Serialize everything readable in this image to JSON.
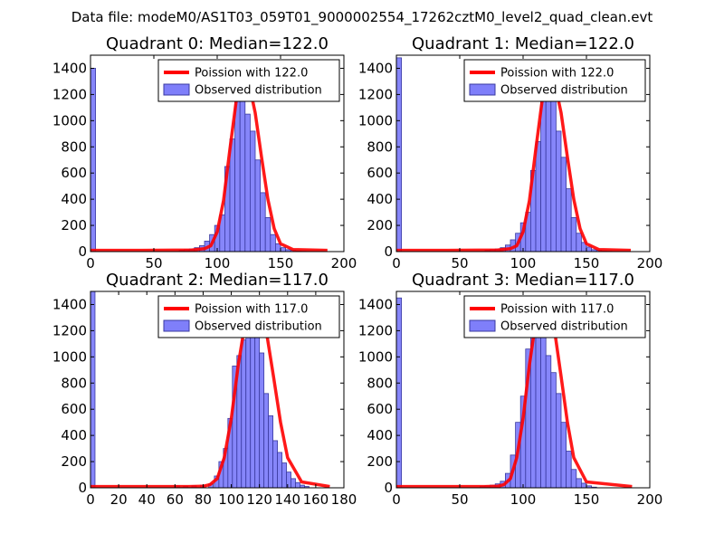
{
  "figure_title": "Data file: modeM0/AS1T03_059T01_9000002554_17262cztM0_level2_quad_clean.evt",
  "colors": {
    "hist_fill": "#7f7ffa",
    "hist_edge": "#3a3aa0",
    "poisson_line": "#ff0000",
    "background": "#ffffff"
  },
  "chart_data": [
    {
      "type": "bar",
      "title": "Quadrant 0: Median=122.0",
      "xlim": [
        0,
        200
      ],
      "ylim": [
        0,
        1500
      ],
      "xticks": [
        0,
        50,
        100,
        150,
        200
      ],
      "yticks": [
        0,
        200,
        400,
        600,
        800,
        1000,
        1200,
        1400
      ],
      "legend_position": "upper right",
      "poisson_mean": 122.0,
      "poisson_line": {
        "name": "Poission with 122.0",
        "x": [
          0,
          40,
          80,
          90,
          95,
          100,
          105,
          110,
          115,
          120,
          122,
          125,
          130,
          135,
          140,
          145,
          150,
          160,
          187
        ],
        "y": [
          10,
          10,
          12,
          22,
          45,
          150,
          390,
          780,
          1150,
          1330,
          1350,
          1290,
          1060,
          720,
          400,
          175,
          60,
          15,
          10
        ]
      },
      "histogram": {
        "name": "Observed distribution",
        "bin_width": 4,
        "bins": [
          0,
          70,
          74,
          78,
          82,
          86,
          90,
          94,
          98,
          102,
          106,
          110,
          114,
          118,
          122,
          126,
          130,
          134,
          138,
          142,
          146,
          150,
          154,
          158,
          162,
          166
        ],
        "counts": [
          1400,
          10,
          15,
          20,
          30,
          45,
          80,
          130,
          200,
          280,
          650,
          860,
          1200,
          1380,
          1050,
          920,
          700,
          450,
          260,
          130,
          60,
          30,
          15,
          10,
          5,
          3
        ]
      }
    },
    {
      "type": "bar",
      "title": "Quadrant 1: Median=122.0",
      "xlim": [
        0,
        200
      ],
      "ylim": [
        0,
        1500
      ],
      "xticks": [
        0,
        50,
        100,
        150,
        200
      ],
      "yticks": [
        0,
        200,
        400,
        600,
        800,
        1000,
        1200,
        1400
      ],
      "legend_position": "upper right",
      "poisson_mean": 122.0,
      "poisson_line": {
        "name": "Poission with 122.0",
        "x": [
          0,
          40,
          80,
          90,
          95,
          100,
          105,
          110,
          115,
          120,
          122,
          125,
          130,
          135,
          140,
          145,
          150,
          160,
          185
        ],
        "y": [
          10,
          10,
          12,
          22,
          45,
          150,
          390,
          780,
          1150,
          1330,
          1350,
          1290,
          1060,
          720,
          400,
          175,
          60,
          15,
          10
        ]
      },
      "histogram": {
        "name": "Observed distribution",
        "bin_width": 4,
        "bins": [
          0,
          70,
          74,
          78,
          82,
          86,
          90,
          94,
          98,
          102,
          106,
          110,
          114,
          118,
          122,
          126,
          130,
          134,
          138,
          142,
          146,
          150,
          154,
          158,
          162,
          166
        ],
        "counts": [
          1480,
          10,
          15,
          20,
          30,
          50,
          90,
          140,
          220,
          300,
          620,
          840,
          1230,
          1410,
          1180,
          920,
          720,
          480,
          260,
          140,
          70,
          35,
          15,
          10,
          5,
          3
        ]
      }
    },
    {
      "type": "bar",
      "title": "Quadrant 2: Median=117.0",
      "xlim": [
        0,
        180
      ],
      "ylim": [
        0,
        1500
      ],
      "xticks": [
        0,
        20,
        40,
        60,
        80,
        100,
        120,
        140,
        160,
        180
      ],
      "yticks": [
        0,
        200,
        400,
        600,
        800,
        1000,
        1200,
        1400
      ],
      "legend_position": "upper right",
      "poisson_mean": 117.0,
      "poisson_line": {
        "name": "Poission with 117.0",
        "x": [
          0,
          40,
          70,
          80,
          85,
          90,
          95,
          100,
          105,
          110,
          115,
          117,
          120,
          125,
          130,
          135,
          140,
          150,
          170
        ],
        "y": [
          10,
          10,
          10,
          12,
          25,
          70,
          230,
          530,
          940,
          1270,
          1430,
          1440,
          1400,
          1190,
          850,
          500,
          230,
          45,
          10
        ]
      },
      "histogram": {
        "name": "Observed distribution",
        "bin_width": 3.2,
        "bins": [
          0,
          60,
          66,
          72,
          78,
          84,
          88,
          91.2,
          94.4,
          97.6,
          100.8,
          104,
          107.2,
          110.4,
          113.6,
          116.8,
          120,
          123.2,
          126.4,
          129.6,
          132.8,
          136,
          139.2,
          142.4,
          145.6,
          148.8,
          152
        ],
        "counts": [
          1500,
          15,
          10,
          15,
          20,
          30,
          90,
          200,
          300,
          530,
          930,
          1010,
          1130,
          1310,
          1450,
          1170,
          1030,
          720,
          550,
          360,
          270,
          190,
          120,
          70,
          40,
          20,
          10
        ]
      }
    },
    {
      "type": "bar",
      "title": "Quadrant 3: Median=117.0",
      "xlim": [
        0,
        200
      ],
      "ylim": [
        0,
        1500
      ],
      "xticks": [
        0,
        50,
        100,
        150,
        200
      ],
      "yticks": [
        0,
        200,
        400,
        600,
        800,
        1000,
        1200,
        1400
      ],
      "legend_position": "upper right",
      "poisson_mean": 117.0,
      "poisson_line": {
        "name": "Poission with 117.0",
        "x": [
          0,
          40,
          70,
          80,
          85,
          90,
          95,
          100,
          105,
          110,
          115,
          117,
          120,
          125,
          130,
          135,
          140,
          150,
          186
        ],
        "y": [
          10,
          10,
          10,
          12,
          25,
          70,
          230,
          530,
          940,
          1270,
          1370,
          1380,
          1340,
          1190,
          850,
          500,
          230,
          45,
          10
        ]
      },
      "histogram": {
        "name": "Observed distribution",
        "bin_width": 4,
        "bins": [
          0,
          66,
          70,
          74,
          78,
          82,
          86,
          90,
          94,
          98,
          102,
          106,
          110,
          114,
          118,
          122,
          126,
          130,
          134,
          138,
          142,
          146,
          150,
          154
        ],
        "counts": [
          1450,
          10,
          15,
          20,
          30,
          50,
          110,
          250,
          500,
          700,
          1060,
          1300,
          1380,
          1240,
          1010,
          880,
          720,
          500,
          280,
          140,
          70,
          35,
          15,
          5
        ]
      }
    }
  ]
}
